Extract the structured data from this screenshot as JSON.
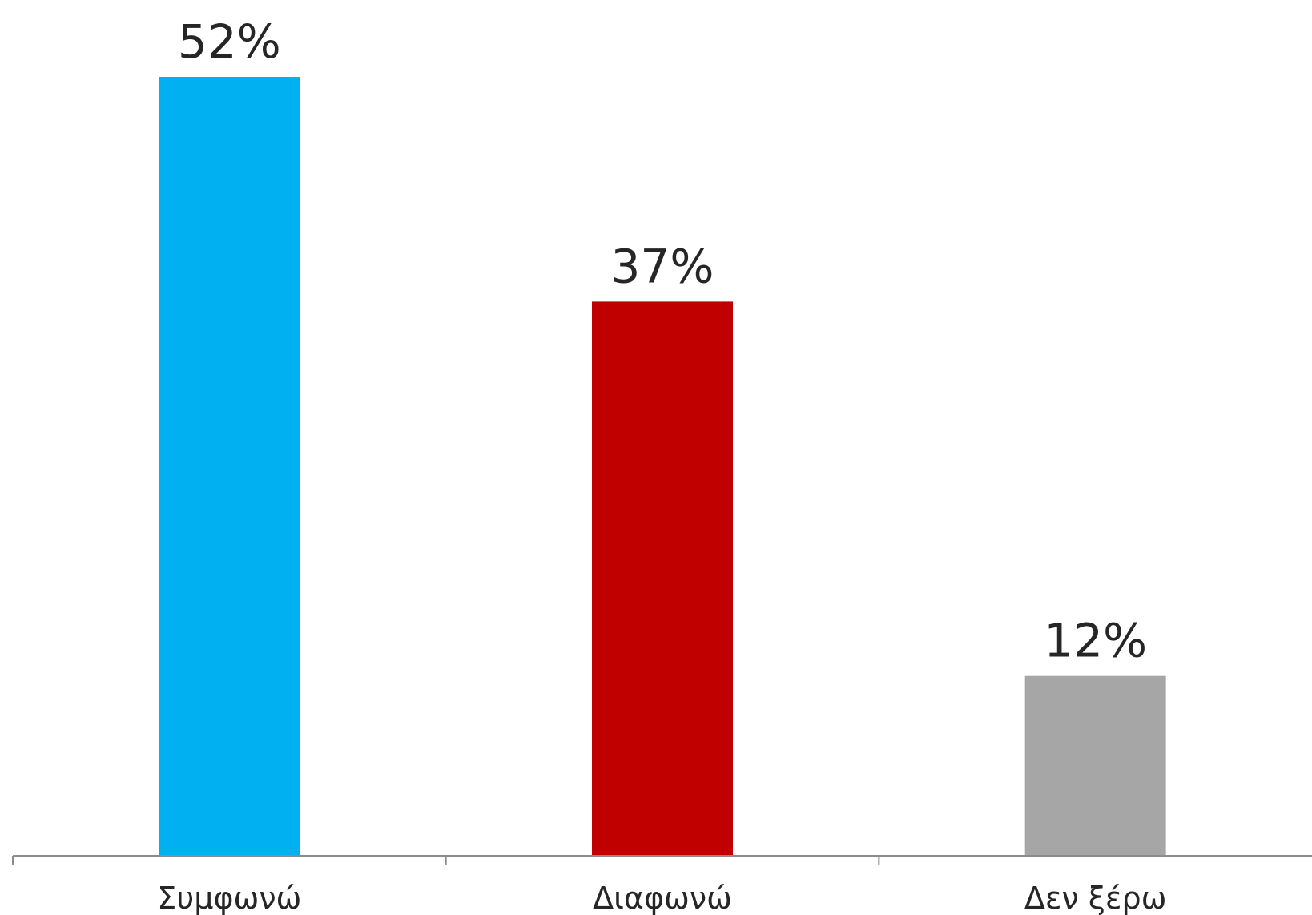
{
  "chart_data": {
    "type": "bar",
    "categories": [
      "Συμφωνώ",
      "Διαφωνώ",
      "Δεν ξέρω"
    ],
    "values": [
      52,
      37,
      12
    ],
    "data_labels": [
      "52%",
      "37%",
      "12%"
    ],
    "colors": [
      "#00B0F0",
      "#C00000",
      "#A6A6A6"
    ],
    "axis_color": "#8C8C8C",
    "ylim": [
      0,
      52
    ],
    "grid": false
  }
}
